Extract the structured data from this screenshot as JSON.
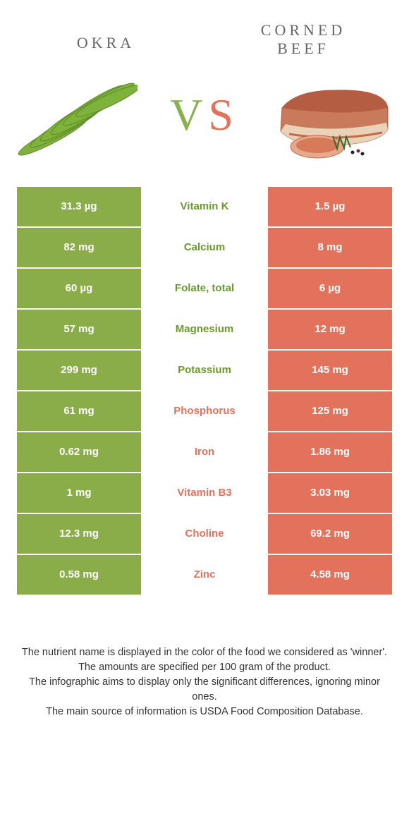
{
  "header": {
    "left": "Okra",
    "right_line1": "corned",
    "right_line2": "beef"
  },
  "vs": {
    "v": "V",
    "s": "S"
  },
  "colors": {
    "okra": "#8aad4a",
    "beef": "#e2725b",
    "okra_label": "#6a9a2e"
  },
  "rows": [
    {
      "left": "31.3 µg",
      "label": "Vitamin K",
      "right": "1.5 µg",
      "winner": "okra"
    },
    {
      "left": "82 mg",
      "label": "Calcium",
      "right": "8 mg",
      "winner": "okra"
    },
    {
      "left": "60 µg",
      "label": "Folate, total",
      "right": "6 µg",
      "winner": "okra"
    },
    {
      "left": "57 mg",
      "label": "Magnesium",
      "right": "12 mg",
      "winner": "okra"
    },
    {
      "left": "299 mg",
      "label": "Potassium",
      "right": "145 mg",
      "winner": "okra"
    },
    {
      "left": "61 mg",
      "label": "Phosphorus",
      "right": "125 mg",
      "winner": "beef"
    },
    {
      "left": "0.62 mg",
      "label": "Iron",
      "right": "1.86 mg",
      "winner": "beef"
    },
    {
      "left": "1 mg",
      "label": "Vitamin B3",
      "right": "3.03 mg",
      "winner": "beef"
    },
    {
      "left": "12.3 mg",
      "label": "Choline",
      "right": "69.2 mg",
      "winner": "beef"
    },
    {
      "left": "0.58 mg",
      "label": "Zinc",
      "right": "4.58 mg",
      "winner": "beef"
    }
  ],
  "footnote": {
    "l1": "The nutrient name is displayed in the color of the food we considered as 'winner'.",
    "l2": "The amounts are specified per 100 gram of the product.",
    "l3": "The infographic aims to display only the significant differences, ignoring minor ones.",
    "l4": "The main source of information is USDA Food Composition Database."
  }
}
